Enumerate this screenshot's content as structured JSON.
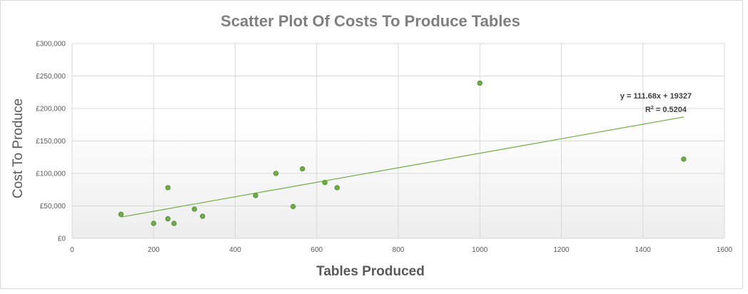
{
  "chart_data": {
    "type": "scatter",
    "title": "Scatter Plot Of Costs To Produce Tables",
    "xlabel": "Tables Produced",
    "ylabel": "Cost To Produce",
    "xlim": [
      0,
      1600
    ],
    "ylim": [
      0,
      300000
    ],
    "x_ticks": [
      "0",
      "200",
      "400",
      "600",
      "800",
      "1000",
      "1200",
      "1400",
      "1600"
    ],
    "y_ticks": [
      "£0",
      "£50,000",
      "£100,000",
      "£150,000",
      "£200,000",
      "£250,000",
      "£300,000"
    ],
    "grid": true,
    "marker_color": "#70ad47",
    "marker_edge_color": "#4e8a2f",
    "trendline_color": "#70ad47",
    "points": [
      {
        "x": 120,
        "y": 37000
      },
      {
        "x": 200,
        "y": 23000
      },
      {
        "x": 235,
        "y": 30000
      },
      {
        "x": 235,
        "y": 78000
      },
      {
        "x": 250,
        "y": 23000
      },
      {
        "x": 300,
        "y": 45000
      },
      {
        "x": 320,
        "y": 34000
      },
      {
        "x": 450,
        "y": 66000
      },
      {
        "x": 500,
        "y": 100000
      },
      {
        "x": 542,
        "y": 49000
      },
      {
        "x": 565,
        "y": 107000
      },
      {
        "x": 620,
        "y": 86000
      },
      {
        "x": 650,
        "y": 78000
      },
      {
        "x": 1000,
        "y": 239000
      },
      {
        "x": 1500,
        "y": 122000
      }
    ],
    "trendline": {
      "slope": 111.68,
      "intercept": 19327,
      "x_range": [
        120,
        1500
      ],
      "equation": "y = 111.68x + 19327",
      "r_squared_label": "R",
      "r_squared_sup": "2",
      "r_squared_value": " = 0.5204"
    }
  }
}
